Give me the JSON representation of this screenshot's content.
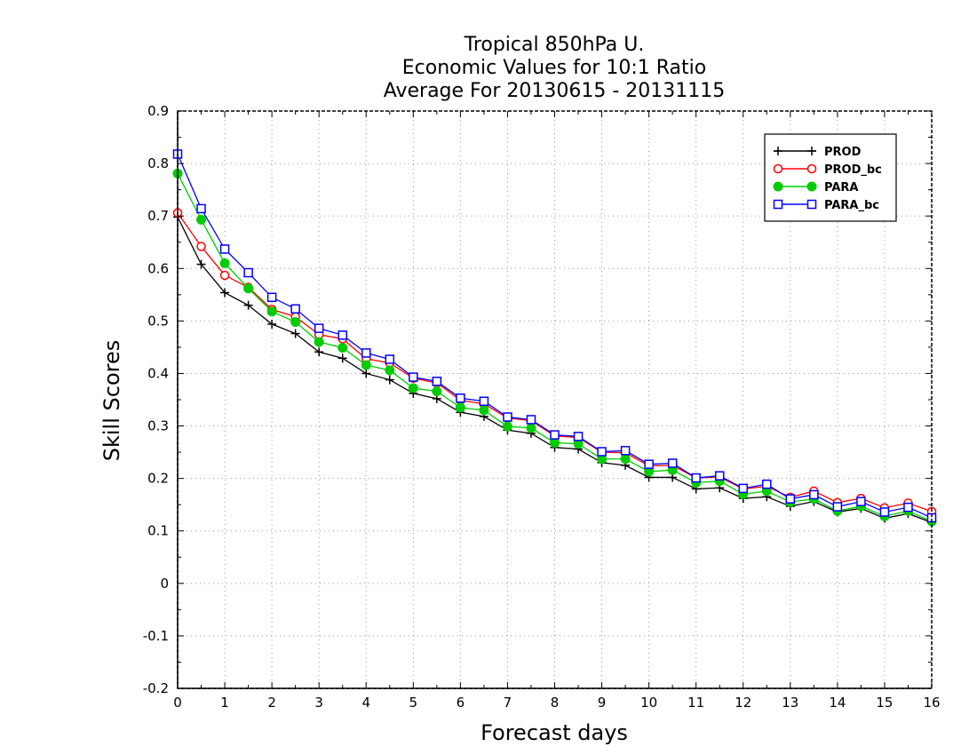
{
  "chart_data": {
    "type": "line",
    "title_lines": [
      "Tropical 850hPa U.",
      "Economic Values for 10:1 Ratio",
      "Average For 20130615 - 20131115"
    ],
    "xlabel": "Forecast days",
    "ylabel": "Skill Scores",
    "xlim": [
      0,
      16
    ],
    "ylim": [
      -0.2,
      0.9
    ],
    "xticks": [
      0,
      1,
      2,
      3,
      4,
      5,
      6,
      7,
      8,
      9,
      10,
      11,
      12,
      13,
      14,
      15,
      16
    ],
    "xtick_labels": [
      "0",
      "1",
      "2",
      "3",
      "4",
      "5",
      "6",
      "7",
      "8",
      "9",
      "10",
      "11",
      "12",
      "13",
      "14",
      "15",
      "16"
    ],
    "yticks": [
      -0.2,
      -0.1,
      0,
      0.1,
      0.2,
      0.3,
      0.4,
      0.5,
      0.6,
      0.7,
      0.8,
      0.9
    ],
    "ytick_labels": [
      "-0.2",
      "-0.1",
      "0",
      "0.1",
      "0.2",
      "0.3",
      "0.4",
      "0.5",
      "0.6",
      "0.7",
      "0.8",
      "0.9"
    ],
    "grid": true,
    "legend_position": "top-right",
    "x": [
      0,
      0.5,
      1,
      1.5,
      2,
      2.5,
      3,
      3.5,
      4,
      4.5,
      5,
      5.5,
      6,
      6.5,
      7,
      7.5,
      8,
      8.5,
      9,
      9.5,
      10,
      10.5,
      11,
      11.5,
      12,
      12.5,
      13,
      13.5,
      14,
      14.5,
      15,
      15.5,
      16
    ],
    "series": [
      {
        "name": "PROD",
        "color": "#000000",
        "marker": "plus",
        "values": [
          0.698,
          0.608,
          0.554,
          0.53,
          0.494,
          0.476,
          0.441,
          0.429,
          0.4,
          0.388,
          0.362,
          0.352,
          0.326,
          0.318,
          0.292,
          0.286,
          0.259,
          0.256,
          0.23,
          0.225,
          0.202,
          0.202,
          0.18,
          0.182,
          0.162,
          0.165,
          0.147,
          0.156,
          0.136,
          0.143,
          0.124,
          0.133,
          0.116
        ]
      },
      {
        "name": "PROD_bc",
        "color": "#ff0000",
        "marker": "open-circle",
        "values": [
          0.706,
          0.642,
          0.587,
          0.564,
          0.522,
          0.508,
          0.474,
          0.466,
          0.428,
          0.42,
          0.391,
          0.382,
          0.349,
          0.342,
          0.315,
          0.31,
          0.281,
          0.278,
          0.25,
          0.249,
          0.224,
          0.225,
          0.201,
          0.203,
          0.18,
          0.185,
          0.164,
          0.176,
          0.154,
          0.162,
          0.144,
          0.153,
          0.137
        ]
      },
      {
        "name": "PARA",
        "color": "#00cc00",
        "marker": "filled-circle",
        "values": [
          0.781,
          0.693,
          0.61,
          0.562,
          0.518,
          0.498,
          0.46,
          0.449,
          0.416,
          0.406,
          0.372,
          0.366,
          0.335,
          0.33,
          0.299,
          0.296,
          0.268,
          0.266,
          0.237,
          0.237,
          0.213,
          0.216,
          0.192,
          0.195,
          0.17,
          0.176,
          0.155,
          0.161,
          0.138,
          0.147,
          0.128,
          0.138,
          0.118
        ]
      },
      {
        "name": "PARA_bc",
        "color": "#0000ff",
        "marker": "open-square",
        "values": [
          0.818,
          0.714,
          0.637,
          0.592,
          0.545,
          0.523,
          0.486,
          0.473,
          0.439,
          0.427,
          0.393,
          0.385,
          0.353,
          0.347,
          0.317,
          0.312,
          0.283,
          0.28,
          0.251,
          0.253,
          0.227,
          0.229,
          0.201,
          0.205,
          0.181,
          0.189,
          0.161,
          0.169,
          0.146,
          0.156,
          0.136,
          0.145,
          0.125
        ]
      }
    ]
  }
}
